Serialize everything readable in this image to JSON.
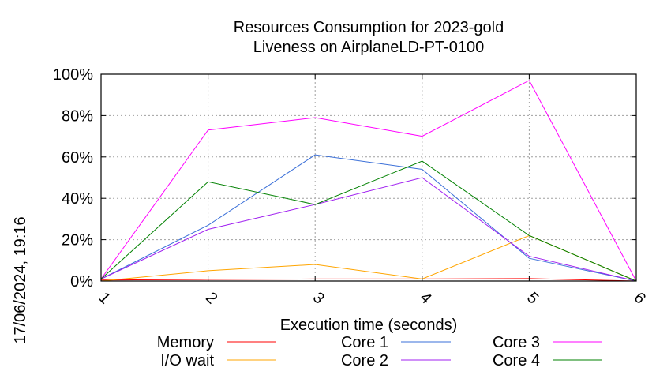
{
  "chart_data": {
    "type": "line",
    "title_line1": "Resources Consumption for 2023-gold",
    "title_line2": "Liveness on AirplaneLD-PT-0100",
    "xlabel": "Execution time (seconds)",
    "ylabel": "",
    "side_label": "17/06/2024, 19:16",
    "x": [
      1,
      2,
      3,
      4,
      5,
      6
    ],
    "x_tick_labels": [
      "1",
      "2",
      "3",
      "4",
      "5",
      "6"
    ],
    "xlim": [
      1,
      6
    ],
    "ylim": [
      0,
      100
    ],
    "y_ticks": [
      0,
      20,
      40,
      60,
      80,
      100
    ],
    "y_tick_labels": [
      "0%",
      "20%",
      "40%",
      "60%",
      "80%",
      "100%"
    ],
    "grid": true,
    "legend_position": "bottom",
    "series": [
      {
        "name": "Memory",
        "color": "#ff0000",
        "values": [
          0.5,
          0.8,
          1,
          1,
          1.2,
          0
        ]
      },
      {
        "name": "I/O wait",
        "color": "#ffa500",
        "values": [
          0,
          5,
          8,
          1,
          22,
          0
        ]
      },
      {
        "name": "Core 1",
        "color": "#3a6fd8",
        "values": [
          1,
          27,
          61,
          54,
          11,
          0
        ]
      },
      {
        "name": "Core 2",
        "color": "#a020f0",
        "values": [
          1,
          25,
          37,
          50,
          12,
          0
        ]
      },
      {
        "name": "Core 3",
        "color": "#ff00ff",
        "values": [
          1,
          73,
          79,
          70,
          97,
          0
        ]
      },
      {
        "name": "Core 4",
        "color": "#008000",
        "values": [
          1,
          48,
          37,
          58,
          22,
          0
        ]
      }
    ]
  }
}
